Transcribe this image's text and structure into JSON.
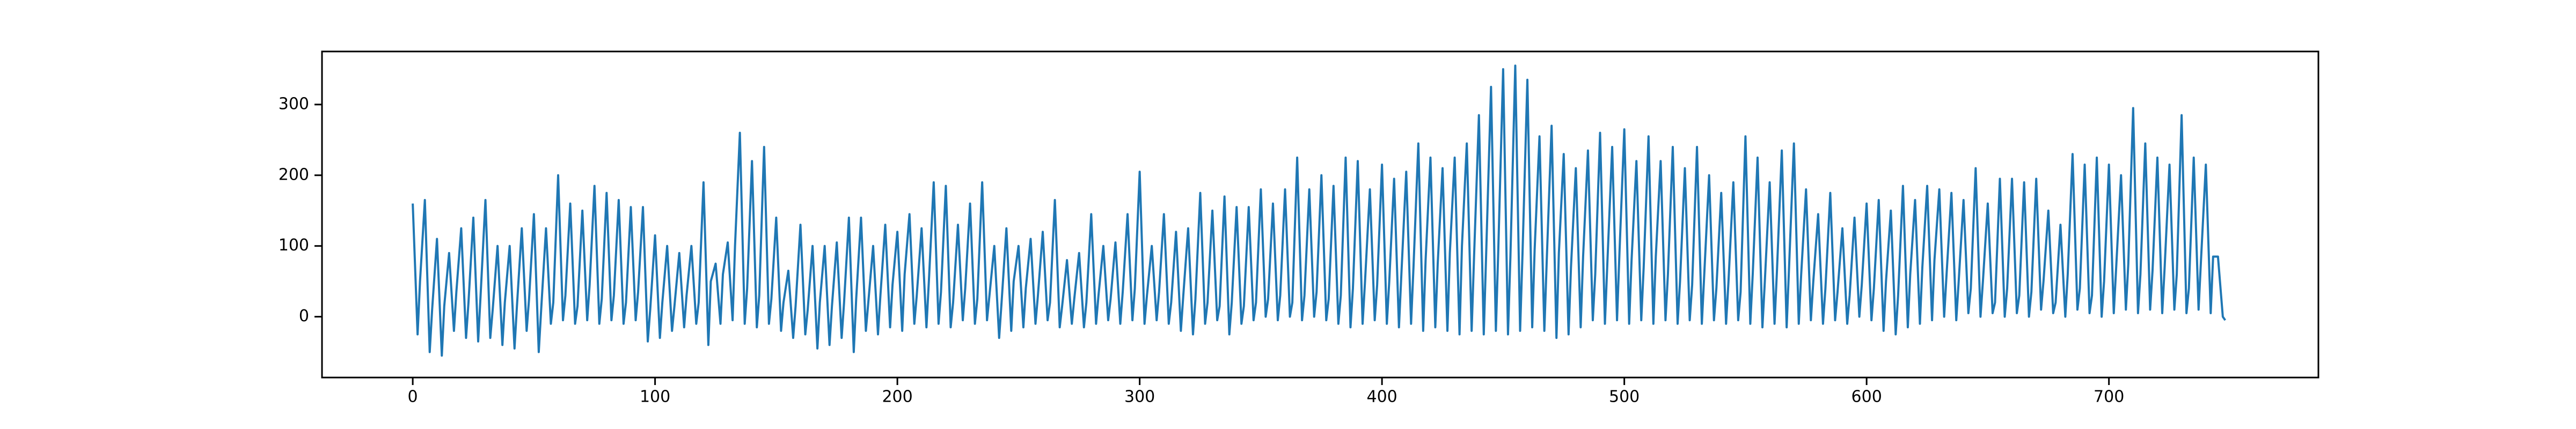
{
  "chart_data": {
    "type": "line",
    "color": "#1f77b4",
    "xlim": [
      -37.45,
      786.45
    ],
    "ylim": [
      -86,
      375
    ],
    "xticks": [
      0,
      100,
      200,
      300,
      400,
      500,
      600,
      700
    ],
    "yticks": [
      0,
      100,
      200,
      300
    ],
    "x": [
      0,
      2,
      3,
      5,
      7,
      8,
      10,
      12,
      13,
      15,
      17,
      18,
      20,
      22,
      23,
      25,
      27,
      28,
      30,
      32,
      33,
      35,
      37,
      38,
      40,
      42,
      43,
      45,
      47,
      48,
      50,
      52,
      53,
      55,
      57,
      58,
      60,
      62,
      63,
      65,
      67,
      68,
      70,
      72,
      73,
      75,
      77,
      78,
      80,
      82,
      83,
      85,
      87,
      88,
      90,
      92,
      93,
      95,
      97,
      98,
      100,
      102,
      103,
      105,
      107,
      108,
      110,
      112,
      113,
      115,
      117,
      118,
      120,
      122,
      123,
      125,
      127,
      128,
      130,
      132,
      133,
      135,
      137,
      138,
      140,
      142,
      143,
      145,
      147,
      148,
      150,
      152,
      153,
      155,
      157,
      158,
      160,
      162,
      163,
      165,
      167,
      168,
      170,
      172,
      173,
      175,
      177,
      178,
      180,
      182,
      183,
      185,
      187,
      188,
      190,
      192,
      193,
      195,
      197,
      198,
      200,
      202,
      203,
      205,
      207,
      208,
      210,
      212,
      213,
      215,
      217,
      218,
      220,
      222,
      223,
      225,
      227,
      228,
      230,
      232,
      233,
      235,
      237,
      238,
      240,
      242,
      243,
      245,
      247,
      248,
      250,
      252,
      253,
      255,
      257,
      258,
      260,
      262,
      263,
      265,
      267,
      268,
      270,
      272,
      273,
      275,
      277,
      278,
      280,
      282,
      283,
      285,
      287,
      288,
      290,
      292,
      293,
      295,
      297,
      298,
      300,
      302,
      303,
      305,
      307,
      308,
      310,
      312,
      313,
      315,
      317,
      318,
      320,
      322,
      323,
      325,
      327,
      328,
      330,
      332,
      333,
      335,
      337,
      338,
      340,
      342,
      343,
      345,
      347,
      348,
      350,
      352,
      353,
      355,
      357,
      358,
      360,
      362,
      363,
      365,
      367,
      368,
      370,
      372,
      373,
      375,
      377,
      378,
      380,
      382,
      383,
      385,
      387,
      388,
      390,
      392,
      393,
      395,
      397,
      398,
      400,
      402,
      403,
      405,
      407,
      408,
      410,
      412,
      413,
      415,
      417,
      418,
      420,
      422,
      423,
      425,
      427,
      428,
      430,
      432,
      433,
      435,
      437,
      438,
      440,
      442,
      443,
      445,
      447,
      448,
      450,
      452,
      453,
      455,
      457,
      458,
      460,
      462,
      463,
      465,
      467,
      468,
      470,
      472,
      473,
      475,
      477,
      478,
      480,
      482,
      483,
      485,
      487,
      488,
      490,
      492,
      493,
      495,
      497,
      498,
      500,
      502,
      503,
      505,
      507,
      508,
      510,
      512,
      513,
      515,
      517,
      518,
      520,
      522,
      523,
      525,
      527,
      528,
      530,
      532,
      533,
      535,
      537,
      538,
      540,
      542,
      543,
      545,
      547,
      548,
      550,
      552,
      553,
      555,
      557,
      558,
      560,
      562,
      563,
      565,
      567,
      568,
      570,
      572,
      573,
      575,
      577,
      578,
      580,
      582,
      583,
      585,
      587,
      588,
      590,
      592,
      593,
      595,
      597,
      598,
      600,
      602,
      603,
      605,
      607,
      608,
      610,
      612,
      613,
      615,
      617,
      618,
      620,
      622,
      623,
      625,
      627,
      628,
      630,
      632,
      633,
      635,
      637,
      638,
      640,
      642,
      643,
      645,
      647,
      648,
      650,
      652,
      653,
      655,
      657,
      658,
      660,
      662,
      663,
      665,
      667,
      668,
      670,
      672,
      673,
      675,
      677,
      678,
      680,
      682,
      683,
      685,
      687,
      688,
      690,
      692,
      693,
      695,
      697,
      698,
      700,
      702,
      703,
      705,
      707,
      708,
      710,
      712,
      713,
      715,
      717,
      718,
      720,
      722,
      723,
      725,
      727,
      728,
      730,
      732,
      733,
      735,
      737,
      738,
      740,
      742,
      743,
      745,
      747,
      748
    ],
    "values": [
      160,
      -25,
      50,
      165,
      -50,
      10,
      110,
      -55,
      15,
      90,
      -20,
      35,
      125,
      -30,
      20,
      140,
      -35,
      30,
      165,
      -30,
      10,
      100,
      -40,
      20,
      100,
      -45,
      15,
      125,
      -20,
      25,
      145,
      -50,
      10,
      125,
      -10,
      20,
      200,
      -5,
      30,
      160,
      -10,
      15,
      150,
      -5,
      45,
      185,
      -10,
      25,
      175,
      -5,
      30,
      165,
      -10,
      20,
      155,
      -5,
      35,
      155,
      -35,
      10,
      115,
      -30,
      20,
      100,
      -20,
      15,
      90,
      -15,
      30,
      100,
      -10,
      20,
      190,
      -40,
      50,
      75,
      -10,
      60,
      105,
      -5,
      100,
      260,
      -10,
      40,
      220,
      -15,
      30,
      240,
      -10,
      25,
      140,
      -20,
      20,
      65,
      -30,
      15,
      130,
      -25,
      10,
      100,
      -45,
      20,
      100,
      -40,
      15,
      105,
      -30,
      20,
      140,
      -50,
      25,
      140,
      -20,
      20,
      100,
      -25,
      30,
      130,
      -15,
      45,
      120,
      -20,
      60,
      145,
      -10,
      30,
      125,
      -15,
      50,
      190,
      -10,
      35,
      185,
      -15,
      20,
      130,
      -5,
      40,
      160,
      -10,
      25,
      190,
      -5,
      30,
      100,
      -30,
      20,
      125,
      -20,
      50,
      100,
      -15,
      40,
      110,
      -10,
      30,
      120,
      -5,
      20,
      165,
      -15,
      15,
      80,
      -10,
      25,
      90,
      -15,
      20,
      145,
      -10,
      30,
      100,
      -5,
      25,
      105,
      -10,
      35,
      145,
      -5,
      40,
      205,
      -10,
      30,
      100,
      -5,
      35,
      145,
      -10,
      20,
      120,
      -20,
      30,
      125,
      -25,
      25,
      175,
      -10,
      20,
      150,
      -5,
      15,
      170,
      -25,
      20,
      155,
      -10,
      15,
      155,
      -5,
      20,
      180,
      0,
      25,
      160,
      -5,
      30,
      180,
      0,
      20,
      225,
      -5,
      30,
      180,
      0,
      35,
      200,
      -5,
      25,
      185,
      -10,
      30,
      225,
      -15,
      40,
      220,
      -10,
      50,
      180,
      -5,
      45,
      215,
      -10,
      50,
      195,
      -15,
      60,
      205,
      -10,
      70,
      245,
      -20,
      80,
      225,
      -15,
      75,
      210,
      -20,
      90,
      225,
      -25,
      100,
      245,
      -20,
      85,
      285,
      -25,
      90,
      325,
      -20,
      95,
      350,
      -25,
      85,
      355,
      -20,
      90,
      335,
      -15,
      95,
      255,
      -20,
      80,
      270,
      -30,
      90,
      230,
      -25,
      70,
      210,
      -15,
      85,
      235,
      -5,
      60,
      260,
      -10,
      75,
      240,
      -5,
      90,
      265,
      -10,
      80,
      220,
      -5,
      70,
      255,
      -10,
      85,
      220,
      -5,
      60,
      240,
      -10,
      50,
      210,
      -5,
      45,
      240,
      -10,
      60,
      200,
      -5,
      40,
      175,
      -10,
      50,
      190,
      -5,
      35,
      255,
      -10,
      60,
      225,
      -15,
      50,
      190,
      -10,
      65,
      235,
      -15,
      70,
      245,
      -10,
      60,
      180,
      -5,
      50,
      145,
      -10,
      40,
      175,
      -5,
      35,
      125,
      -10,
      30,
      140,
      0,
      45,
      160,
      -5,
      40,
      165,
      -20,
      50,
      150,
      -25,
      30,
      185,
      -15,
      60,
      165,
      -10,
      70,
      185,
      -5,
      80,
      180,
      0,
      60,
      175,
      -5,
      50,
      165,
      5,
      40,
      210,
      0,
      50,
      160,
      5,
      20,
      195,
      0,
      40,
      195,
      5,
      30,
      190,
      0,
      35,
      195,
      10,
      50,
      150,
      5,
      20,
      130,
      0,
      60,
      230,
      10,
      40,
      215,
      5,
      30,
      225,
      0,
      50,
      215,
      5,
      70,
      200,
      10,
      75,
      295,
      5,
      60,
      245,
      10,
      65,
      225,
      5,
      70,
      215,
      10,
      60,
      285,
      5,
      40,
      225,
      10,
      80,
      215,
      5,
      85,
      85,
      0,
      -5
    ]
  }
}
